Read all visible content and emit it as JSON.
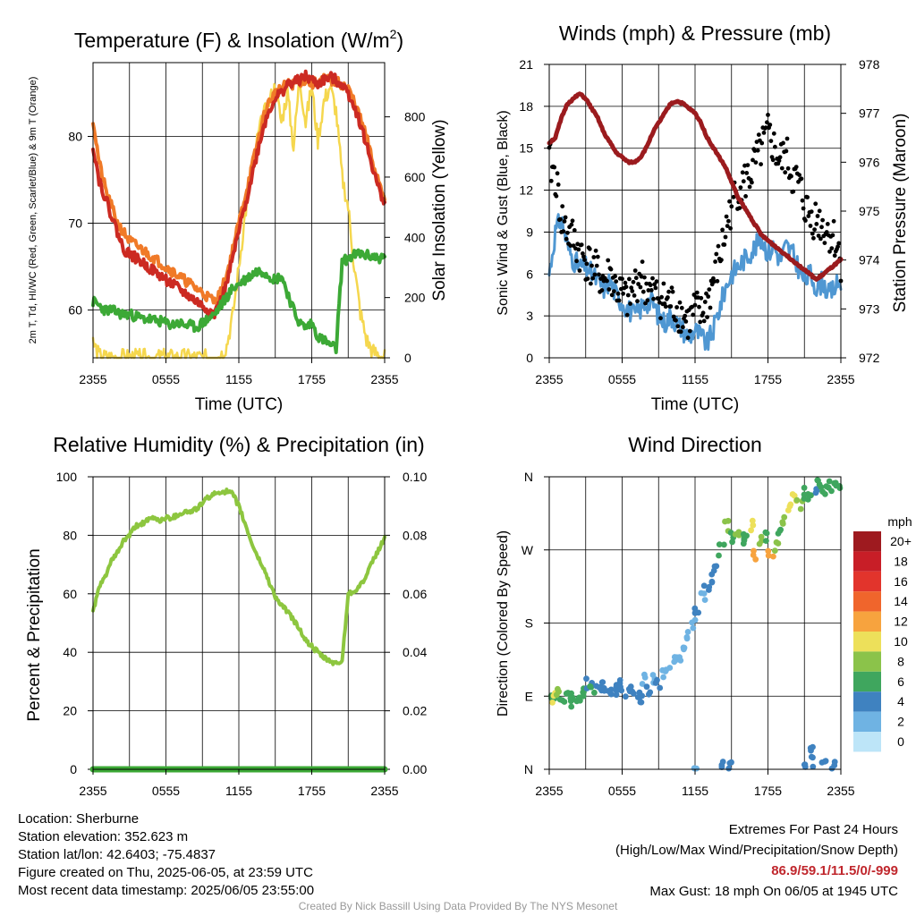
{
  "figure": {
    "info": {
      "location": "Location: Sherburne",
      "elevation": "Station elevation: 352.623 m",
      "latlon": "Station lat/lon: 42.6403; -75.4837",
      "created": "Figure created on Thu, 2025-06-05, at 23:59 UTC",
      "recent": "Most recent data timestamp: 2025/06/05 23:55:00"
    },
    "extremes": {
      "title": "Extremes For Past 24 Hours",
      "subtitle": "(High/Low/Max Wind/Precipitation/Snow Depth)",
      "values": "86.9/59.1/11.5/0/-999",
      "gust": "Max Gust: 18 mph On 06/05 at 1945 UTC"
    },
    "credit": "Created By Nick Bassill Using Data Provided By The NYS Mesonet"
  },
  "chart_data": [
    {
      "type": "line",
      "title": "Temperature (F) & Insolation (W/m²)",
      "xlabel": "Time (UTC)",
      "ylabel": "2m T, Td, HI/WC (Red, Green, Scarlet/Blue) & 9m T (Orange)",
      "y2label": "Solar Insolation (Yellow)",
      "x_ticks": [
        "2355",
        "0555",
        "1155",
        "1755",
        "2355"
      ],
      "y_ticks": [
        60,
        70,
        80
      ],
      "ylim": [
        54.5,
        88.5
      ],
      "y2_ticks": [
        0,
        200,
        400,
        600,
        800
      ],
      "y2lim": [
        0,
        980
      ],
      "x": [
        0,
        0.5,
        1,
        1.5,
        2,
        2.5,
        3,
        3.5,
        4,
        4.5,
        5,
        5.5,
        6,
        6.5,
        7,
        7.5,
        8,
        8.5,
        9,
        9.5,
        10,
        10.5,
        11,
        11.5,
        12,
        12.5,
        13,
        13.5,
        14,
        14.5,
        15,
        15.5,
        16,
        16.5,
        17,
        17.5,
        18,
        18.5,
        19,
        19.5,
        20,
        20.5,
        21,
        21.5,
        22,
        22.5,
        23,
        23.5,
        24
      ],
      "series": [
        {
          "name": "9m T",
          "color": "#f07a28",
          "values": [
            82,
            77,
            74,
            72,
            70,
            69,
            68,
            67.5,
            67,
            66.5,
            66,
            65.5,
            65,
            64.5,
            64,
            63.5,
            63,
            62.5,
            62,
            61.5,
            61,
            62,
            64,
            67,
            70,
            73,
            76,
            79,
            82,
            84,
            85,
            85.5,
            86,
            86,
            86.3,
            86.5,
            86,
            86.3,
            86.6,
            86.5,
            86.3,
            86,
            85.5,
            84,
            82,
            80,
            77,
            75,
            73
          ]
        },
        {
          "name": "2m T",
          "color": "#cc2a22",
          "values": [
            79,
            75,
            73,
            71,
            69,
            67,
            66.5,
            66,
            65.5,
            65,
            64.5,
            64,
            63.5,
            63,
            62.5,
            62,
            61.5,
            61,
            60.5,
            60,
            59.5,
            61,
            63,
            66,
            69,
            72,
            75,
            78,
            81,
            83,
            84.5,
            85,
            86,
            86.2,
            86.5,
            86.9,
            86.5,
            86,
            86.5,
            86.8,
            86.5,
            86,
            85,
            83.5,
            81.5,
            79,
            76.5,
            74,
            72.5
          ]
        },
        {
          "name": "2m Td",
          "color": "#3ca936",
          "values": [
            61,
            60.5,
            60,
            60,
            59.7,
            59.5,
            59.5,
            59.3,
            59,
            59,
            58.8,
            58.7,
            58.5,
            58.3,
            58.5,
            58.3,
            58.2,
            58,
            58.5,
            59,
            59.5,
            60.5,
            61.5,
            62.5,
            63,
            63.5,
            64,
            64.5,
            64.5,
            64,
            63.5,
            64,
            62,
            60,
            58.5,
            58,
            58.5,
            57,
            56.5,
            56,
            55.5,
            65.5,
            66,
            66.3,
            66.5,
            66.3,
            66.2,
            66,
            66
          ]
        },
        {
          "name": "Insolation",
          "color": "#f5d74e",
          "axis": "y2",
          "values": [
            50,
            5,
            0,
            0,
            0,
            0,
            0,
            0,
            0,
            0,
            0,
            0,
            0,
            0,
            0,
            0,
            0,
            0,
            0,
            0,
            0,
            5,
            40,
            140,
            300,
            470,
            600,
            720,
            800,
            850,
            900,
            780,
            880,
            700,
            930,
            780,
            900,
            720,
            850,
            900,
            820,
            600,
            500,
            300,
            150,
            60,
            20,
            10,
            0
          ]
        }
      ]
    },
    {
      "type": "line",
      "title": "Winds (mph) & Pressure (mb)",
      "xlabel": "Time (UTC)",
      "ylabel": "Sonic Wind & Gust (Blue, Black)",
      "y2label": "Station Pressure (Maroon)",
      "x_ticks": [
        "2355",
        "0555",
        "1155",
        "1755",
        "2355"
      ],
      "y_ticks": [
        0,
        3,
        6,
        9,
        12,
        15,
        18,
        21
      ],
      "ylim": [
        0,
        21
      ],
      "y2_ticks": [
        972,
        973,
        974,
        975,
        976,
        977,
        978
      ],
      "y2lim": [
        972,
        978
      ],
      "x": [
        0,
        0.5,
        1,
        1.5,
        2,
        2.5,
        3,
        3.5,
        4,
        4.5,
        5,
        5.5,
        6,
        6.5,
        7,
        7.5,
        8,
        8.5,
        9,
        9.5,
        10,
        10.5,
        11,
        11.5,
        12,
        12.5,
        13,
        13.5,
        14,
        14.5,
        15,
        15.5,
        16,
        16.5,
        17,
        17.5,
        18,
        18.5,
        19,
        19.5,
        20,
        20.5,
        21,
        21.5,
        22,
        22.5,
        23,
        23.5,
        24
      ],
      "series": [
        {
          "name": "Sonic Wind",
          "color": "#4f97d2",
          "values": [
            6,
            9,
            10,
            8,
            7,
            6.5,
            6.5,
            6,
            5.5,
            5,
            5.5,
            4.5,
            4,
            3.5,
            3,
            3.5,
            4,
            4,
            3,
            2.5,
            3,
            2.5,
            2,
            1.5,
            2,
            1.5,
            1,
            2,
            3.5,
            5,
            6,
            6.5,
            7,
            7.5,
            8,
            8.5,
            7.5,
            8,
            7,
            8,
            7.5,
            6.5,
            5.5,
            6,
            5,
            5.5,
            4.5,
            5,
            5.5
          ]
        },
        {
          "name": "Gust",
          "color": "#000000",
          "style": "dots",
          "values": [
            14,
            13,
            10,
            9,
            8.5,
            7.5,
            7,
            6.5,
            6,
            5.5,
            6,
            5,
            4.5,
            4,
            5,
            6,
            5,
            4.5,
            4.5,
            4,
            4,
            3.5,
            3,
            2.5,
            3.5,
            3,
            4,
            5.5,
            7,
            9,
            11,
            12,
            12.5,
            13,
            14,
            15,
            16,
            15,
            14,
            14.5,
            13,
            12.5,
            11,
            10,
            10,
            9.5,
            9,
            8.5,
            7
          ]
        },
        {
          "name": "Station Pressure",
          "color": "#9b1b1e",
          "axis": "y2",
          "values": [
            976.4,
            976.5,
            976.9,
            977.2,
            977.3,
            977.4,
            977.3,
            977.1,
            976.9,
            976.6,
            976.4,
            976.2,
            976.1,
            976.0,
            976.0,
            976.1,
            976.3,
            976.6,
            976.8,
            977.0,
            977.2,
            977.25,
            977.2,
            977.1,
            977.0,
            976.8,
            976.5,
            976.3,
            976.1,
            975.9,
            975.6,
            975.3,
            975.1,
            974.9,
            974.7,
            974.5,
            974.4,
            974.3,
            974.2,
            974.1,
            974.0,
            973.9,
            973.8,
            973.7,
            973.6,
            973.7,
            973.8,
            973.9,
            974.0
          ]
        }
      ]
    },
    {
      "type": "line",
      "title": "Relative Humidity (%) & Precipitation (in)",
      "xlabel": "",
      "ylabel": "Percent & Precipitation",
      "x_ticks": [
        "2355",
        "0555",
        "1155",
        "1755",
        "2355"
      ],
      "y_ticks": [
        0,
        20,
        40,
        60,
        80,
        100
      ],
      "ylim": [
        0,
        100
      ],
      "y2_ticks": [
        "0.00",
        "0.02",
        "0.04",
        "0.06",
        "0.08",
        "0.10"
      ],
      "y2lim": [
        0,
        0.1
      ],
      "x": [
        0,
        0.5,
        1,
        1.5,
        2,
        2.5,
        3,
        3.5,
        4,
        4.5,
        5,
        5.5,
        6,
        6.5,
        7,
        7.5,
        8,
        8.5,
        9,
        9.5,
        10,
        10.5,
        11,
        11.5,
        12,
        12.5,
        13,
        13.5,
        14,
        14.5,
        15,
        15.5,
        16,
        16.5,
        17,
        17.5,
        18,
        18.5,
        19,
        19.5,
        20,
        20.5,
        21,
        21.5,
        22,
        22.5,
        23,
        23.5,
        24
      ],
      "series": [
        {
          "name": "Relative Humidity",
          "color": "#8dc63f",
          "values": [
            54,
            62,
            66,
            71,
            74,
            78,
            80,
            83,
            84,
            85,
            86,
            85,
            86,
            86,
            87,
            88,
            88,
            89,
            91,
            93,
            94,
            95,
            95,
            94,
            90,
            84,
            78,
            73,
            69,
            64,
            59,
            56,
            54,
            51,
            48,
            44,
            42,
            40,
            38,
            37,
            36,
            37,
            60,
            61,
            63,
            66,
            71,
            75,
            79
          ]
        },
        {
          "name": "Precipitation",
          "color": "#3ca936",
          "axis": "y2",
          "values": [
            0,
            0,
            0,
            0,
            0,
            0,
            0,
            0,
            0,
            0,
            0,
            0,
            0,
            0,
            0,
            0,
            0,
            0,
            0,
            0,
            0,
            0,
            0,
            0,
            0,
            0,
            0,
            0,
            0,
            0,
            0,
            0,
            0,
            0,
            0,
            0,
            0,
            0,
            0,
            0,
            0,
            0,
            0,
            0,
            0,
            0,
            0,
            0,
            0
          ]
        }
      ]
    },
    {
      "type": "scatter",
      "title": "Wind Direction",
      "xlabel": "",
      "ylabel": "Direction (Colored By Speed)",
      "x_ticks": [
        "2355",
        "0555",
        "1155",
        "1755",
        "2355"
      ],
      "y_ticks": [
        "N",
        "E",
        "S",
        "W",
        "N"
      ],
      "ylim": [
        0,
        360
      ],
      "legend": {
        "title": "mph",
        "placement": "right",
        "labels": [
          "20+",
          "18",
          "16",
          "14",
          "12",
          "10",
          "8",
          "6",
          "4",
          "2",
          "0"
        ],
        "colors": [
          "#9e1a1f",
          "#c81e27",
          "#e2342c",
          "#f0652c",
          "#f7a33e",
          "#ede05a",
          "#8bc34a",
          "#3fa65e",
          "#3f82c0",
          "#6fb3e3",
          "#bde5f8"
        ]
      },
      "points": [
        {
          "x": 0.2,
          "y": 92,
          "s": 6
        },
        {
          "x": 0.5,
          "y": 88,
          "s": 10
        },
        {
          "x": 0.8,
          "y": 95,
          "s": 8
        },
        {
          "x": 1.1,
          "y": 85,
          "s": 6
        },
        {
          "x": 1.4,
          "y": 90,
          "s": 6
        },
        {
          "x": 1.7,
          "y": 80,
          "s": 6
        },
        {
          "x": 2.0,
          "y": 88,
          "s": 6
        },
        {
          "x": 2.3,
          "y": 85,
          "s": 6
        },
        {
          "x": 2.6,
          "y": 92,
          "s": 6
        },
        {
          "x": 3.0,
          "y": 100,
          "s": 6
        },
        {
          "x": 3.3,
          "y": 105,
          "s": 4
        },
        {
          "x": 3.6,
          "y": 100,
          "s": 6
        },
        {
          "x": 4.0,
          "y": 104,
          "s": 4
        },
        {
          "x": 4.3,
          "y": 98,
          "s": 4
        },
        {
          "x": 4.6,
          "y": 102,
          "s": 4
        },
        {
          "x": 5.0,
          "y": 100,
          "s": 4
        },
        {
          "x": 5.3,
          "y": 97,
          "s": 4
        },
        {
          "x": 5.6,
          "y": 103,
          "s": 4
        },
        {
          "x": 6.0,
          "y": 99,
          "s": 4
        },
        {
          "x": 6.4,
          "y": 95,
          "s": 4
        },
        {
          "x": 6.8,
          "y": 100,
          "s": 4
        },
        {
          "x": 7.2,
          "y": 92,
          "s": 4
        },
        {
          "x": 7.5,
          "y": 85,
          "s": 4
        },
        {
          "x": 7.8,
          "y": 110,
          "s": 2
        },
        {
          "x": 8.2,
          "y": 98,
          "s": 4
        },
        {
          "x": 8.6,
          "y": 112,
          "s": 2
        },
        {
          "x": 9.0,
          "y": 105,
          "s": 4
        },
        {
          "x": 9.4,
          "y": 118,
          "s": 2
        },
        {
          "x": 9.8,
          "y": 125,
          "s": 2
        },
        {
          "x": 10.2,
          "y": 132,
          "s": 2
        },
        {
          "x": 10.6,
          "y": 138,
          "s": 2
        },
        {
          "x": 11.0,
          "y": 150,
          "s": 2
        },
        {
          "x": 11.4,
          "y": 165,
          "s": 2
        },
        {
          "x": 11.8,
          "y": 180,
          "s": 2
        },
        {
          "x": 12.2,
          "y": 195,
          "s": 4
        },
        {
          "x": 12.6,
          "y": 210,
          "s": 2
        },
        {
          "x": 13.0,
          "y": 220,
          "s": 4
        },
        {
          "x": 13.4,
          "y": 235,
          "s": 4
        },
        {
          "x": 13.8,
          "y": 250,
          "s": 4
        },
        {
          "x": 14.2,
          "y": 270,
          "s": 6
        },
        {
          "x": 14.6,
          "y": 300,
          "s": 8
        },
        {
          "x": 15.0,
          "y": 285,
          "s": 6
        },
        {
          "x": 15.4,
          "y": 295,
          "s": 8
        },
        {
          "x": 15.8,
          "y": 278,
          "s": 6
        },
        {
          "x": 16.2,
          "y": 290,
          "s": 6
        },
        {
          "x": 16.6,
          "y": 300,
          "s": 10
        },
        {
          "x": 17.0,
          "y": 265,
          "s": 12
        },
        {
          "x": 17.4,
          "y": 280,
          "s": 8
        },
        {
          "x": 17.8,
          "y": 288,
          "s": 6
        },
        {
          "x": 18.2,
          "y": 262,
          "s": 12
        },
        {
          "x": 18.6,
          "y": 275,
          "s": 8
        },
        {
          "x": 19.0,
          "y": 290,
          "s": 6
        },
        {
          "x": 19.4,
          "y": 305,
          "s": 8
        },
        {
          "x": 19.8,
          "y": 320,
          "s": 10
        },
        {
          "x": 20.2,
          "y": 335,
          "s": 10
        },
        {
          "x": 20.6,
          "y": 325,
          "s": 8
        },
        {
          "x": 21.0,
          "y": 340,
          "s": 6
        },
        {
          "x": 21.4,
          "y": 335,
          "s": 6
        },
        {
          "x": 21.8,
          "y": 345,
          "s": 4
        },
        {
          "x": 22.2,
          "y": 350,
          "s": 6
        },
        {
          "x": 22.6,
          "y": 342,
          "s": 6
        },
        {
          "x": 23.0,
          "y": 348,
          "s": 6
        },
        {
          "x": 23.4,
          "y": 345,
          "s": 6
        },
        {
          "x": 23.8,
          "y": 350,
          "s": 6
        },
        {
          "x": 21.2,
          "y": 5,
          "s": 4
        },
        {
          "x": 21.5,
          "y": 25,
          "s": 4
        },
        {
          "x": 21.8,
          "y": 10,
          "s": 4
        },
        {
          "x": 22.6,
          "y": 8,
          "s": 4
        },
        {
          "x": 23.5,
          "y": 3,
          "s": 4
        },
        {
          "x": 12.0,
          "y": 2,
          "s": 2
        },
        {
          "x": 14.4,
          "y": 4,
          "s": 4
        },
        {
          "x": 15.0,
          "y": 3,
          "s": 4
        }
      ]
    }
  ]
}
